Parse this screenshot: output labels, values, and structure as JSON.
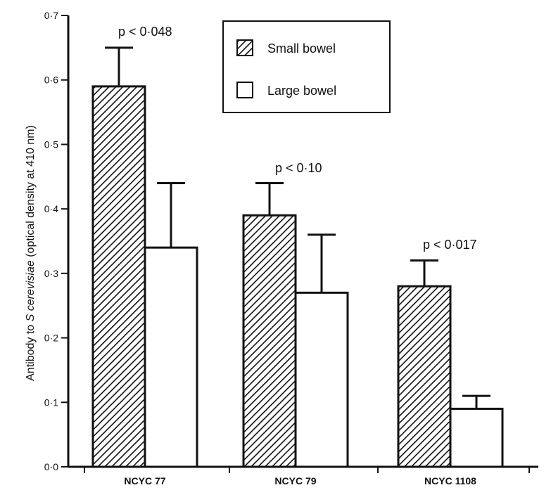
{
  "chart_data": {
    "type": "bar",
    "ylabel": {
      "prefix": "Antibody to ",
      "italic": "S cerevisiae",
      "suffix": " (optical density at 410 nm)"
    },
    "ylim": [
      0,
      0.7
    ],
    "yticks": [
      {
        "value": 0.0,
        "label": "0·0"
      },
      {
        "value": 0.1,
        "label": "0·1"
      },
      {
        "value": 0.2,
        "label": "0·2"
      },
      {
        "value": 0.3,
        "label": "0·3"
      },
      {
        "value": 0.4,
        "label": "0·4"
      },
      {
        "value": 0.5,
        "label": "0·5"
      },
      {
        "value": 0.6,
        "label": "0·6"
      },
      {
        "value": 0.7,
        "label": "0·7"
      }
    ],
    "categories": [
      "NCYC 77",
      "NCYC 79",
      "NCYC 1108"
    ],
    "series": [
      {
        "name": "Small bowel",
        "pattern": "hatched",
        "values": [
          0.59,
          0.39,
          0.28
        ],
        "error": [
          0.06,
          0.05,
          0.04
        ]
      },
      {
        "name": "Large bowel",
        "pattern": "open",
        "values": [
          0.34,
          0.27,
          0.09
        ],
        "error": [
          0.1,
          0.09,
          0.02
        ]
      }
    ],
    "annotations": [
      "p < 0·048",
      "p < 0·10",
      "p < 0·017"
    ],
    "legend": "top-center",
    "grid": false
  }
}
